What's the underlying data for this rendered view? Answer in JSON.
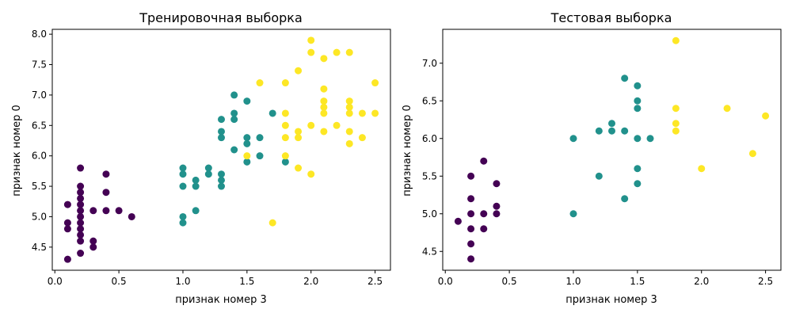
{
  "chart_data": [
    {
      "type": "scatter",
      "title": "Тренировочная выборка",
      "xlabel": "признак номер 3",
      "ylabel": "признак номер 0",
      "xlim": [
        -0.02,
        2.62
      ],
      "ylim": [
        4.12,
        8.08
      ],
      "xticks": [
        "0.0",
        "0.5",
        "1.0",
        "1.5",
        "2.0",
        "2.5"
      ],
      "xtick_values": [
        0,
        0.5,
        1.0,
        1.5,
        2.0,
        2.5
      ],
      "yticks": [
        "4.5",
        "5.0",
        "5.5",
        "6.0",
        "6.5",
        "7.0",
        "7.5",
        "8.0"
      ],
      "ytick_values": [
        4.5,
        5.0,
        5.5,
        6.0,
        6.5,
        7.0,
        7.5,
        8.0
      ],
      "grid": false,
      "colors": {
        "class0": "#440154",
        "class1": "#21918c",
        "class2": "#fde725"
      },
      "series": [
        {
          "class": 0,
          "points": [
            [
              0.1,
              5.2
            ],
            [
              0.1,
              4.9
            ],
            [
              0.1,
              4.8
            ],
            [
              0.1,
              4.3
            ],
            [
              0.2,
              5.8
            ],
            [
              0.2,
              5.5
            ],
            [
              0.2,
              5.4
            ],
            [
              0.2,
              5.3
            ],
            [
              0.2,
              5.2
            ],
            [
              0.2,
              5.1
            ],
            [
              0.2,
              5.0
            ],
            [
              0.2,
              4.9
            ],
            [
              0.2,
              4.8
            ],
            [
              0.2,
              4.7
            ],
            [
              0.2,
              4.6
            ],
            [
              0.2,
              4.4
            ],
            [
              0.3,
              5.1
            ],
            [
              0.3,
              4.6
            ],
            [
              0.3,
              4.5
            ],
            [
              0.4,
              5.7
            ],
            [
              0.4,
              5.4
            ],
            [
              0.4,
              5.1
            ],
            [
              0.5,
              5.1
            ],
            [
              0.6,
              5.0
            ]
          ]
        },
        {
          "class": 1,
          "points": [
            [
              1.0,
              5.8
            ],
            [
              1.0,
              5.7
            ],
            [
              1.0,
              5.5
            ],
            [
              1.0,
              5.0
            ],
            [
              1.0,
              4.9
            ],
            [
              1.1,
              5.6
            ],
            [
              1.1,
              5.5
            ],
            [
              1.1,
              5.1
            ],
            [
              1.2,
              5.8
            ],
            [
              1.2,
              5.7
            ],
            [
              1.3,
              6.6
            ],
            [
              1.3,
              6.4
            ],
            [
              1.3,
              6.3
            ],
            [
              1.3,
              5.7
            ],
            [
              1.3,
              5.6
            ],
            [
              1.3,
              5.5
            ],
            [
              1.4,
              7.0
            ],
            [
              1.4,
              6.7
            ],
            [
              1.4,
              6.6
            ],
            [
              1.4,
              6.1
            ],
            [
              1.5,
              6.9
            ],
            [
              1.5,
              6.3
            ],
            [
              1.5,
              6.2
            ],
            [
              1.5,
              5.9
            ],
            [
              1.6,
              6.3
            ],
            [
              1.6,
              6.0
            ],
            [
              1.7,
              6.7
            ],
            [
              1.8,
              5.9
            ]
          ]
        },
        {
          "class": 2,
          "points": [
            [
              1.5,
              6.0
            ],
            [
              1.6,
              7.2
            ],
            [
              1.7,
              4.9
            ],
            [
              1.8,
              7.2
            ],
            [
              1.8,
              6.7
            ],
            [
              1.8,
              6.5
            ],
            [
              1.8,
              6.3
            ],
            [
              1.8,
              6.0
            ],
            [
              1.9,
              7.4
            ],
            [
              1.9,
              6.4
            ],
            [
              1.9,
              6.3
            ],
            [
              1.9,
              5.8
            ],
            [
              2.0,
              7.9
            ],
            [
              2.0,
              7.7
            ],
            [
              2.0,
              6.5
            ],
            [
              2.0,
              5.7
            ],
            [
              2.1,
              7.6
            ],
            [
              2.1,
              7.1
            ],
            [
              2.1,
              6.9
            ],
            [
              2.1,
              6.8
            ],
            [
              2.1,
              6.7
            ],
            [
              2.1,
              6.4
            ],
            [
              2.2,
              7.7
            ],
            [
              2.2,
              6.5
            ],
            [
              2.3,
              7.7
            ],
            [
              2.3,
              6.9
            ],
            [
              2.3,
              6.8
            ],
            [
              2.3,
              6.7
            ],
            [
              2.3,
              6.4
            ],
            [
              2.3,
              6.2
            ],
            [
              2.4,
              6.7
            ],
            [
              2.4,
              6.3
            ],
            [
              2.5,
              7.2
            ],
            [
              2.5,
              6.7
            ]
          ]
        }
      ]
    },
    {
      "type": "scatter",
      "title": "Тестовая выборка",
      "xlabel": "признак номер 3",
      "ylabel": "признак номер 0",
      "xlim": [
        -0.02,
        2.62
      ],
      "ylim": [
        4.25,
        7.45
      ],
      "xticks": [
        "0.0",
        "0.5",
        "1.0",
        "1.5",
        "2.0",
        "2.5"
      ],
      "xtick_values": [
        0,
        0.5,
        1.0,
        1.5,
        2.0,
        2.5
      ],
      "yticks": [
        "4.5",
        "5.0",
        "5.5",
        "6.0",
        "6.5",
        "7.0"
      ],
      "ytick_values": [
        4.5,
        5.0,
        5.5,
        6.0,
        6.5,
        7.0
      ],
      "grid": false,
      "colors": {
        "class0": "#440154",
        "class1": "#21918c",
        "class2": "#fde725"
      },
      "series": [
        {
          "class": 0,
          "points": [
            [
              0.1,
              4.9
            ],
            [
              0.2,
              5.5
            ],
            [
              0.2,
              5.2
            ],
            [
              0.2,
              5.0
            ],
            [
              0.2,
              4.8
            ],
            [
              0.2,
              4.6
            ],
            [
              0.2,
              4.4
            ],
            [
              0.3,
              5.7
            ],
            [
              0.3,
              5.0
            ],
            [
              0.3,
              4.8
            ],
            [
              0.4,
              5.4
            ],
            [
              0.4,
              5.1
            ],
            [
              0.4,
              5.0
            ]
          ]
        },
        {
          "class": 1,
          "points": [
            [
              1.0,
              6.0
            ],
            [
              1.0,
              5.0
            ],
            [
              1.2,
              6.1
            ],
            [
              1.2,
              5.5
            ],
            [
              1.3,
              6.2
            ],
            [
              1.3,
              6.1
            ],
            [
              1.4,
              6.8
            ],
            [
              1.4,
              6.1
            ],
            [
              1.4,
              5.2
            ],
            [
              1.5,
              6.7
            ],
            [
              1.5,
              6.5
            ],
            [
              1.5,
              6.4
            ],
            [
              1.5,
              6.0
            ],
            [
              1.5,
              5.6
            ],
            [
              1.5,
              5.4
            ],
            [
              1.6,
              6.0
            ]
          ]
        },
        {
          "class": 2,
          "points": [
            [
              1.8,
              7.3
            ],
            [
              1.8,
              6.4
            ],
            [
              1.8,
              6.2
            ],
            [
              1.8,
              6.1
            ],
            [
              2.0,
              5.6
            ],
            [
              2.2,
              6.4
            ],
            [
              2.4,
              5.8
            ],
            [
              2.5,
              6.3
            ]
          ]
        }
      ]
    }
  ]
}
